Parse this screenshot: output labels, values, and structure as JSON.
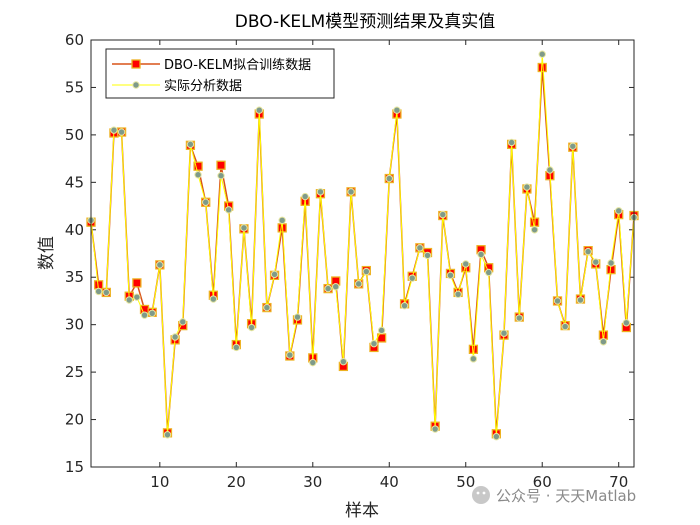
{
  "watermark": "公众号 · 天天Matlab",
  "colors": {
    "predicted_line": "#d95319",
    "predicted_marker_face": "#ff0000",
    "predicted_marker_edge": "#edb120",
    "actual_line": "#ffff00",
    "actual_marker_face": "#7e9a8a",
    "actual_marker_edge": "#e6e6a0",
    "axis": "#262626"
  },
  "chart_data": {
    "type": "line",
    "title": "DBO-KELM模型预测结果及真实值",
    "xlabel": "样本",
    "ylabel": "数值",
    "xlim": [
      1,
      72
    ],
    "ylim": [
      15,
      60
    ],
    "xticks": [
      10,
      20,
      30,
      40,
      50,
      60,
      70
    ],
    "yticks": [
      15,
      20,
      25,
      30,
      35,
      40,
      45,
      50,
      55,
      60
    ],
    "legend_position": "top-left",
    "grid": false,
    "x": [
      1,
      2,
      3,
      4,
      5,
      6,
      7,
      8,
      9,
      10,
      11,
      12,
      13,
      14,
      15,
      16,
      17,
      18,
      19,
      20,
      21,
      22,
      23,
      24,
      25,
      26,
      27,
      28,
      29,
      30,
      31,
      32,
      33,
      34,
      35,
      36,
      37,
      38,
      39,
      40,
      41,
      42,
      43,
      44,
      45,
      46,
      47,
      48,
      49,
      50,
      51,
      52,
      53,
      54,
      55,
      56,
      57,
      58,
      59,
      60,
      61,
      62,
      63,
      64,
      65,
      66,
      67,
      68,
      69,
      70,
      71,
      72
    ],
    "series": [
      {
        "name": "DBO-KELM拟合训练数据",
        "marker": "square",
        "values": [
          40.8,
          34.2,
          33.4,
          50.2,
          50.3,
          33.0,
          34.4,
          31.6,
          31.3,
          36.3,
          18.6,
          28.4,
          29.9,
          48.9,
          46.7,
          42.9,
          33.1,
          46.8,
          42.5,
          27.9,
          40.1,
          30.1,
          52.2,
          31.8,
          35.2,
          40.2,
          26.7,
          30.5,
          43.0,
          26.5,
          43.8,
          33.8,
          34.6,
          25.6,
          44.0,
          34.3,
          35.7,
          27.6,
          28.6,
          45.4,
          52.2,
          32.2,
          35.1,
          38.1,
          37.6,
          19.3,
          41.5,
          35.4,
          33.4,
          36.0,
          27.4,
          37.9,
          36.0,
          18.5,
          28.9,
          49.0,
          30.8,
          44.3,
          40.8,
          57.1,
          45.7,
          32.5,
          29.9,
          48.7,
          32.7,
          37.8,
          36.4,
          28.9,
          35.8,
          41.6,
          29.7,
          41.5
        ]
      },
      {
        "name": "实际分析数据",
        "marker": "circle",
        "values": [
          41.0,
          33.5,
          33.4,
          50.5,
          50.3,
          32.6,
          32.9,
          31.0,
          31.2,
          36.3,
          18.4,
          28.7,
          30.3,
          49.0,
          45.8,
          42.9,
          32.7,
          45.7,
          42.1,
          27.6,
          40.2,
          29.7,
          52.6,
          31.8,
          35.3,
          41.0,
          26.8,
          30.8,
          43.5,
          26.0,
          44.0,
          33.8,
          34.0,
          26.1,
          44.0,
          34.3,
          35.6,
          28.0,
          29.4,
          45.4,
          52.6,
          32.0,
          34.9,
          38.1,
          37.3,
          19.0,
          41.6,
          35.2,
          33.2,
          36.4,
          26.4,
          37.4,
          35.5,
          18.2,
          29.1,
          49.2,
          30.7,
          44.5,
          40.0,
          58.5,
          46.3,
          32.5,
          29.8,
          48.8,
          32.6,
          37.7,
          36.6,
          28.2,
          36.5,
          42.0,
          30.2,
          41.3
        ]
      }
    ]
  }
}
